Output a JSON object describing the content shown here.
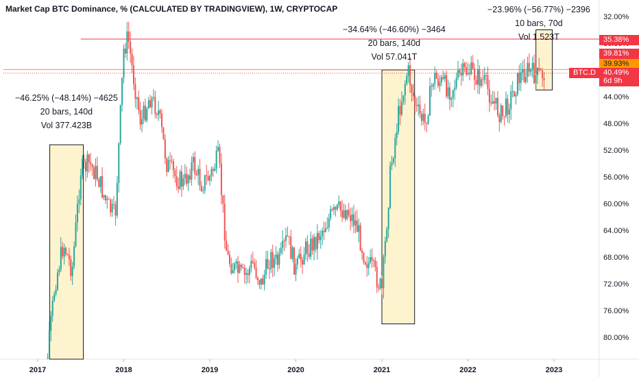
{
  "title": "Market Cap BTC Dominance, % (CALCULATED BY TRADINGVIEW), 1W, CRYPTOCAP",
  "annotations": [
    {
      "line1": "−46.25% (−48.14%) −4625",
      "line2": "20 bars, 140d",
      "line3": "Vol 377.423B"
    },
    {
      "line1": "−34.64% (−46.60%) −3464",
      "line2": "20 bars, 140d",
      "line3": "Vol 57.041T"
    },
    {
      "line1": "−23.96% (−56.77%) −2396",
      "line2": "10 bars, 70d",
      "line3": "Vol 1.523T"
    }
  ],
  "price_tags": [
    {
      "label": "35.38%",
      "color": "#f23645",
      "fg": "#ffffff"
    },
    {
      "label": "39.81%",
      "color": "#f23645",
      "fg": "#ffffff"
    },
    {
      "label": "39.93%",
      "color": "#ff9800",
      "fg": "#131722"
    },
    {
      "label": "BTC.D",
      "color": "#f23645",
      "fg": "#ffffff"
    },
    {
      "label": "40.49%",
      "color": "#f23645",
      "fg": "#ffffff"
    },
    {
      "label": "6d 9h",
      "color": "#f23645",
      "fg": "#ffffff"
    }
  ],
  "colors": {
    "up": "#26a69a",
    "down": "#ef5350",
    "box_fill": "#fdf3cf",
    "line_red": "#f23645",
    "line_orange": "#ff9800"
  },
  "chart_data": {
    "type": "candlestick",
    "title": "Market Cap BTC Dominance, % (CALCULATED BY TRADINGVIEW), 1W, CRYPTOCAP",
    "scale": "inverted",
    "y_ticks": [
      "32.00%",
      "36.00%",
      "40.00%",
      "44.00%",
      "48.00%",
      "52.00%",
      "56.00%",
      "60.00%",
      "64.00%",
      "68.00%",
      "72.00%",
      "76.00%",
      "80.00%"
    ],
    "x_ticks": [
      "2017",
      "2018",
      "2019",
      "2020",
      "2021",
      "2022",
      "2023"
    ],
    "ylim": [
      31,
      84
    ],
    "xlim": [
      2016.6,
      2023.5
    ],
    "horizontal_lines": [
      {
        "value": 35.38,
        "color": "#f23645",
        "from": 2017.5
      },
      {
        "value": 39.93,
        "color": "#ff9800",
        "from": 2016.6
      },
      {
        "value": 40.49,
        "color": "#f23645",
        "style": "dotted",
        "from": 2016.6
      }
    ],
    "measure_boxes": [
      {
        "x_start": 2017.14,
        "x_end": 2017.53,
        "y_top": 51.2,
        "y_bottom": 84
      },
      {
        "x_start": 2021.0,
        "x_end": 2021.38,
        "y_top": 40.0,
        "y_bottom": 78.0
      },
      {
        "x_start": 2022.79,
        "x_end": 2022.98,
        "y_top": 34.0,
        "y_bottom": 43.0
      }
    ],
    "series": [
      {
        "x": [
          2017.0,
          2017.1,
          2017.2,
          2017.3,
          2017.4,
          2017.5,
          2017.6,
          2017.7,
          2017.8,
          2017.9,
          2018.0,
          2018.05,
          2018.1,
          2018.2,
          2018.3,
          2018.4,
          2018.5,
          2018.6,
          2018.7,
          2018.8,
          2018.9,
          2019.0,
          2019.1,
          2019.2,
          2019.3,
          2019.4,
          2019.5,
          2019.6,
          2019.7,
          2019.8,
          2019.9,
          2020.0,
          2020.1,
          2020.2,
          2020.3,
          2020.4,
          2020.5,
          2020.6,
          2020.7,
          2020.8,
          2020.9,
          2021.0,
          2021.1,
          2021.2,
          2021.3,
          2021.4,
          2021.5,
          2021.6,
          2021.7,
          2021.8,
          2021.9,
          2022.0,
          2022.1,
          2022.2,
          2022.3,
          2022.4,
          2022.5,
          2022.6,
          2022.7,
          2022.8,
          2022.9
        ],
        "values": [
          86,
          85,
          72,
          66,
          70,
          55,
          54,
          56,
          60,
          62,
          37,
          35,
          40,
          48,
          44,
          46,
          54,
          56,
          57,
          54,
          57,
          56,
          53,
          68,
          70,
          71,
          69,
          72,
          68,
          69,
          65,
          70,
          67,
          66,
          64,
          62,
          61,
          61,
          63,
          68,
          70,
          73,
          55,
          46,
          40,
          46,
          48,
          41,
          42,
          43,
          41,
          40,
          41,
          42,
          45,
          47,
          44,
          41,
          40,
          41,
          40.5
        ]
      }
    ]
  }
}
